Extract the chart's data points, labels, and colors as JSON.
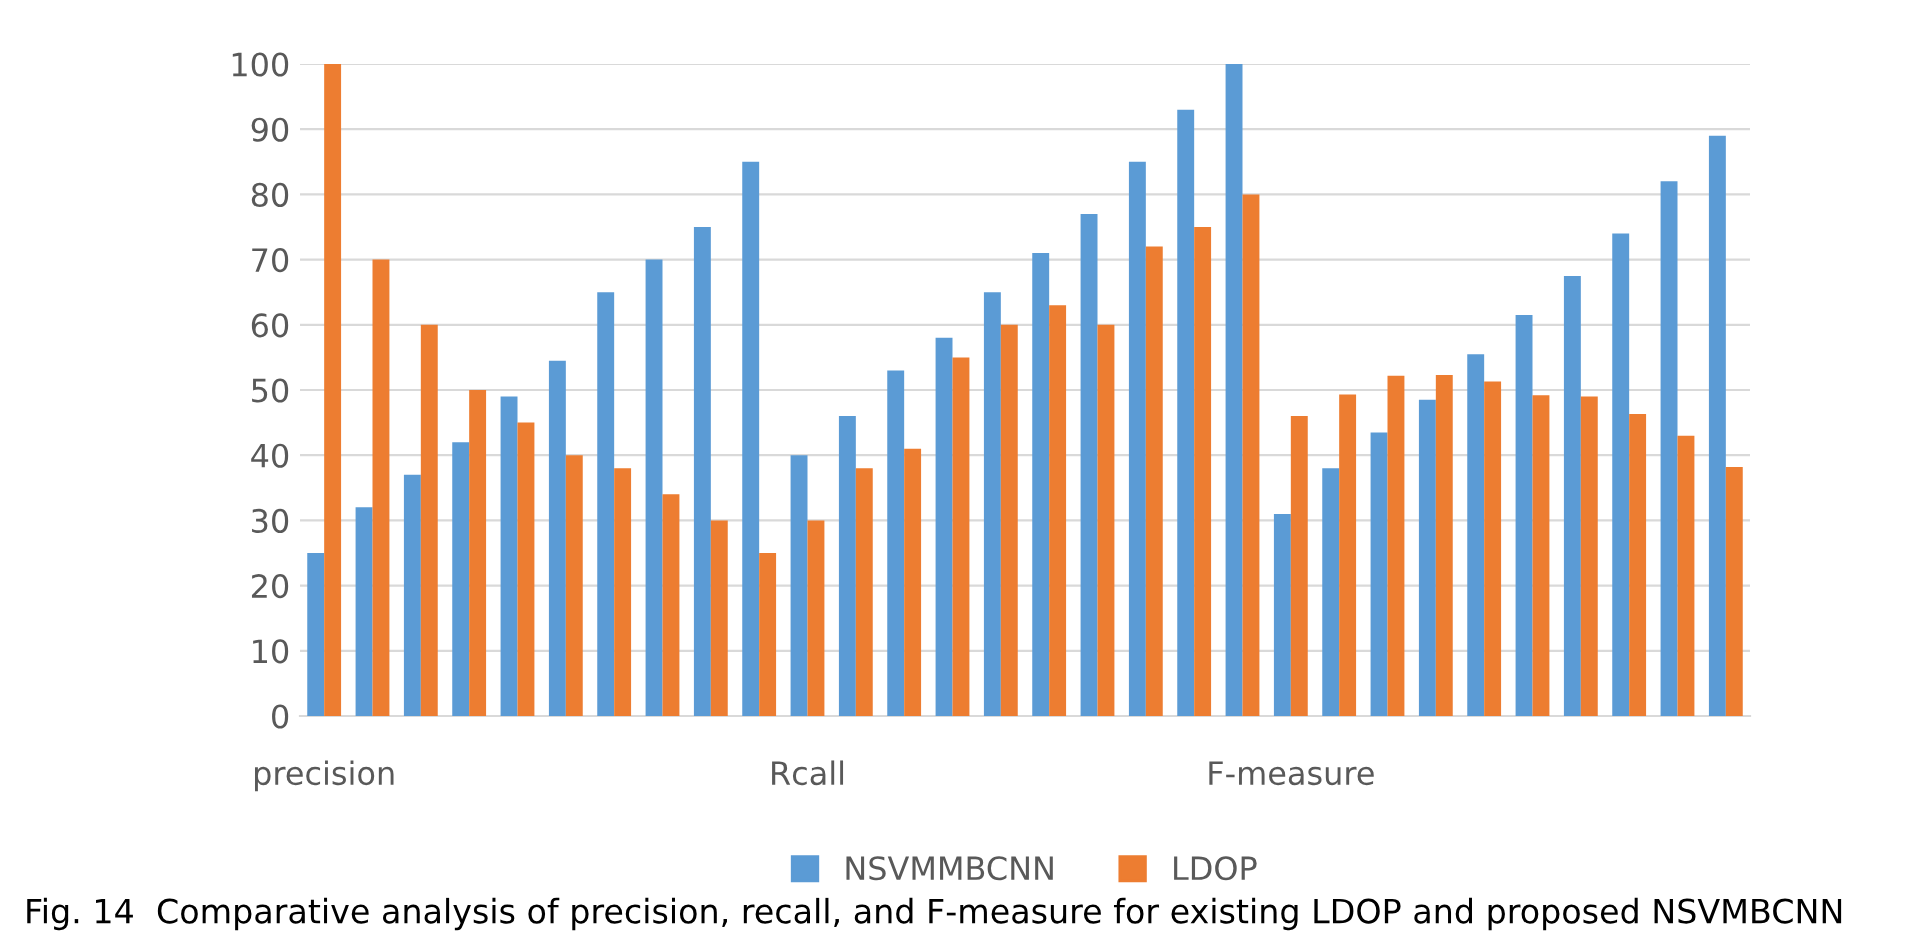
{
  "chart_data": {
    "type": "bar",
    "categories": [
      "precision",
      null,
      null,
      null,
      null,
      null,
      null,
      null,
      null,
      null,
      "Rcall",
      null,
      null,
      null,
      null,
      null,
      null,
      null,
      null,
      null,
      "F-measure",
      null,
      null,
      null,
      null,
      null,
      null,
      null,
      null,
      null
    ],
    "series": [
      {
        "name": "NSVMMBCNN",
        "color": "#5b9bd5",
        "values": [
          25,
          32,
          37,
          42,
          49,
          54.5,
          65,
          70,
          75,
          85,
          40,
          46,
          53,
          58,
          65,
          71,
          77,
          85,
          93,
          100,
          31,
          38,
          43.5,
          48.5,
          55.5,
          61.5,
          67.5,
          74,
          82,
          89
        ]
      },
      {
        "name": "LDOP",
        "color": "#ed7d31",
        "values": [
          100,
          70,
          60,
          50,
          45,
          40,
          38,
          34,
          30,
          25,
          30,
          38,
          41,
          55,
          60,
          63,
          60,
          72,
          75,
          80,
          46,
          49.3,
          52.2,
          52.3,
          51.3,
          49.2,
          49,
          46.3,
          43,
          38.2
        ]
      }
    ],
    "ylim": [
      0,
      100
    ],
    "yticks": [
      0,
      10,
      20,
      30,
      40,
      50,
      60,
      70,
      80,
      90,
      100
    ],
    "grid": "y",
    "legend": "bottom",
    "annotations": [
      "Fig. 14  Comparative analysis of precision, recall, and F-measure for existing LDOP and proposed NSVMBCNN"
    ]
  }
}
